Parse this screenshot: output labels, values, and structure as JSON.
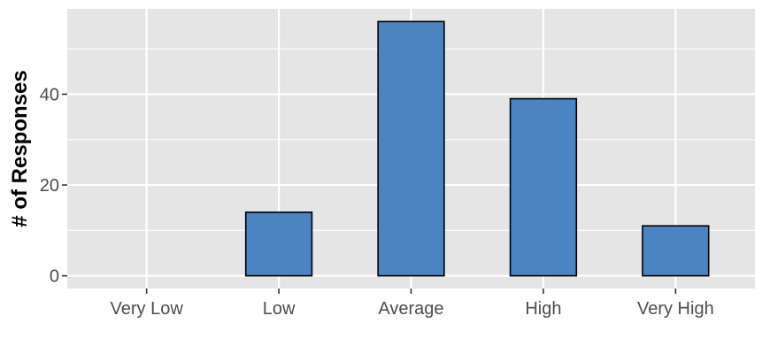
{
  "chart_data": {
    "type": "bar",
    "categories": [
      "Very Low",
      "Low",
      "Average",
      "High",
      "Very High"
    ],
    "values": [
      0,
      14,
      56,
      39,
      11
    ],
    "xlabel": "",
    "ylabel": "# of Responses",
    "ylim": [
      -2.8,
      58.8
    ],
    "yticks": [
      0,
      20,
      40
    ],
    "grid": true,
    "colors": {
      "panel": "#e5e5e5",
      "gridline": "#ffffff",
      "bar_fill": "#4a84c3",
      "bar_stroke": "#000000",
      "tick_text": "#4d4d4d"
    }
  }
}
